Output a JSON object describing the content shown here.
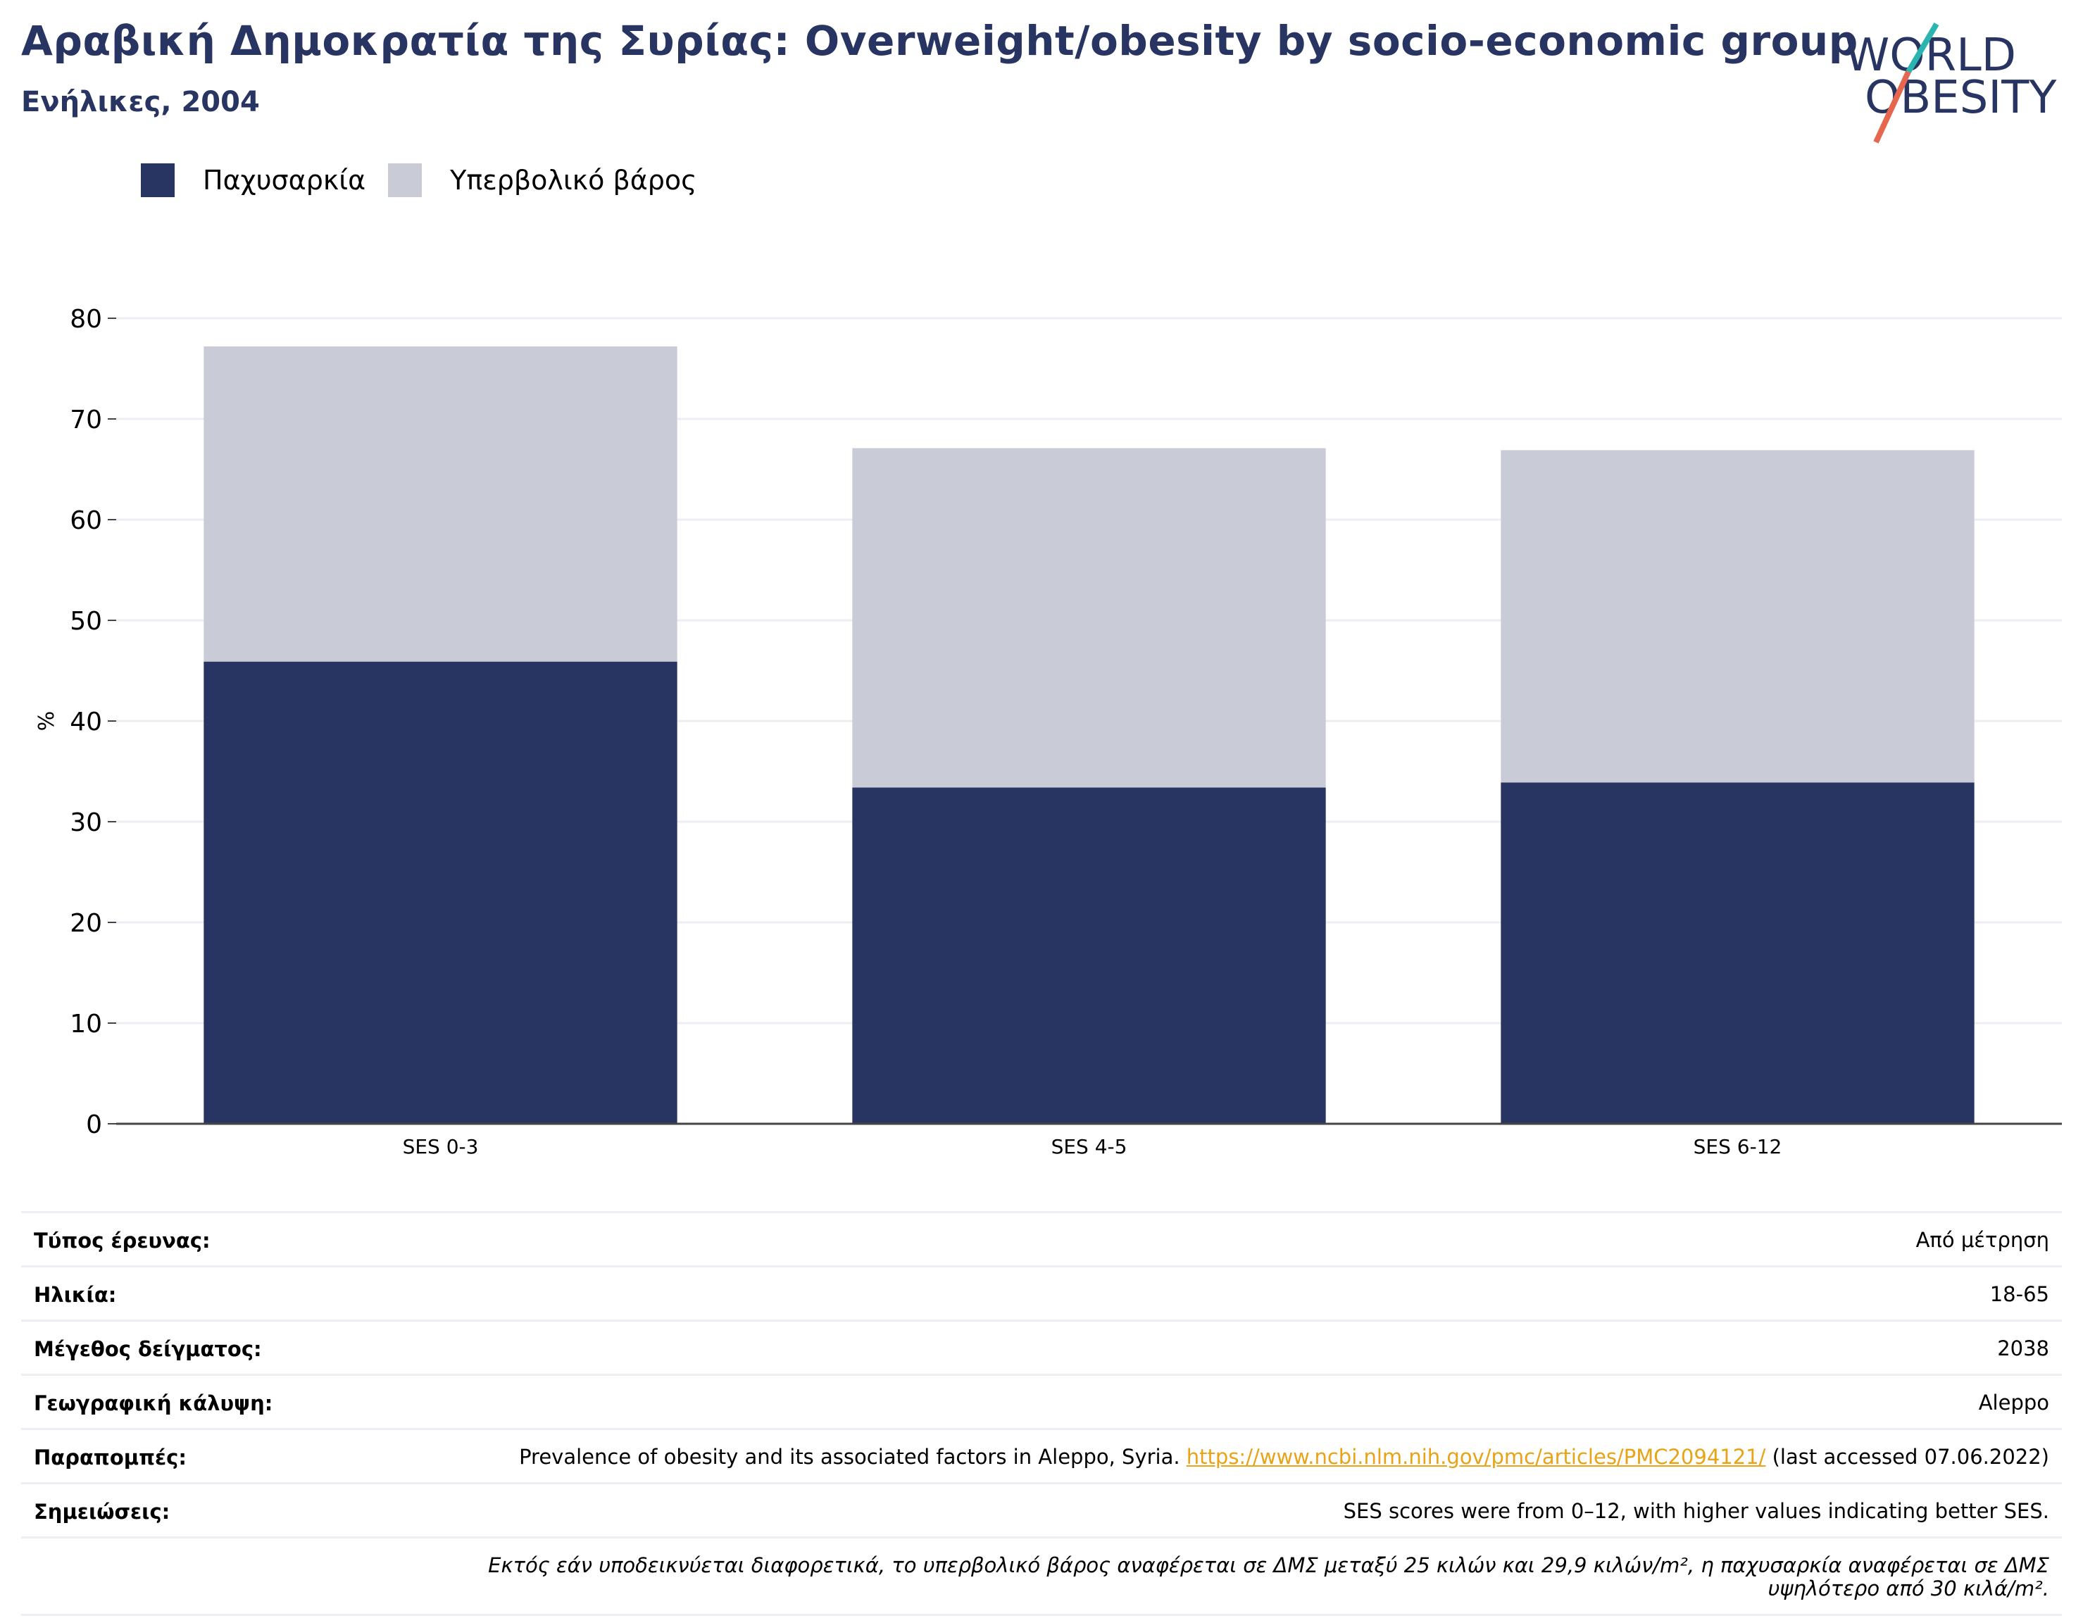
{
  "header": {
    "title": "Αραβική Δημοκρατία της Συρίας: Overweight/obesity by socio-economic group",
    "subtitle": "Ενήλικες, 2004"
  },
  "logo": {
    "line1": "WORLD",
    "line2": "OBESITY"
  },
  "colors": {
    "obesity": "#283562",
    "overweight": "#c9cbd7",
    "title": "#283562",
    "link": "#e8a316",
    "logo_teal": "#2cb5b0",
    "logo_red": "#e5674e"
  },
  "chart_data": {
    "type": "bar",
    "stacked": true,
    "categories": [
      "SES 0-3",
      "SES 4-5",
      "SES 6-12"
    ],
    "series": [
      {
        "name": "Παχυσαρκία",
        "values": [
          45.9,
          33.4,
          33.9
        ]
      },
      {
        "name": "Υπερβολικό βάρος",
        "values": [
          31.3,
          33.7,
          33.0
        ]
      }
    ],
    "ylabel": "%",
    "ylim": [
      0,
      80
    ],
    "yticks": [
      0,
      10,
      20,
      30,
      40,
      50,
      60,
      70,
      80
    ],
    "grid": true,
    "legend_position": "top-left"
  },
  "info": {
    "survey_type": {
      "label": "Τύπος έρευνας:",
      "value": "Από μέτρηση"
    },
    "age": {
      "label": "Ηλικία:",
      "value": "18-65"
    },
    "sample_size": {
      "label": "Μέγεθος δείγματος:",
      "value": "2038"
    },
    "coverage": {
      "label": "Γεωγραφική κάλυψη:",
      "value": "Aleppo"
    },
    "references": {
      "label": "Παραπομπές:",
      "text": "Prevalence of obesity and its associated factors in Aleppo, Syria.",
      "link": "https://www.ncbi.nlm.nih.gov/pmc/articles/PMC2094121/",
      "accessed": "(last accessed 07.06.2022)"
    },
    "notes": {
      "label": "Σημειώσεις:",
      "value": "SES scores were from 0–12, with higher values indicating better SES."
    },
    "definition": "Εκτός εάν υποδεικνύεται διαφορετικά, το υπερβολικό βάρος αναφέρεται σε ΔΜΣ μεταξύ 25 κιλών και 29,9 κιλών/m², η παχυσαρκία αναφέρεται σε ΔΜΣ υψηλότερο από 30 κιλά/m²."
  }
}
